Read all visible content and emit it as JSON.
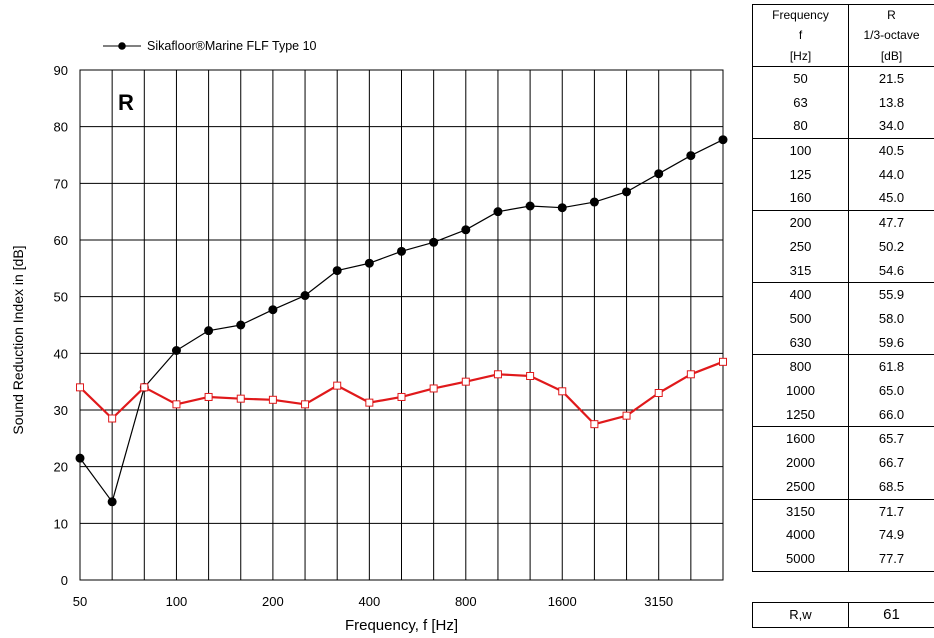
{
  "chart_data": {
    "type": "line",
    "legend": {
      "label": "Sikafloor®Marine FLF Type 10",
      "placement": "top-left"
    },
    "annotation": "R",
    "xlabel": "Frequency,  f [Hz]",
    "ylabel": "Sound Reduction Index in    [dB]",
    "x_tick_labels": [
      "50",
      "100",
      "200",
      "400",
      "800",
      "1600",
      "3150"
    ],
    "categories": [
      "50",
      "63",
      "80",
      "100",
      "125",
      "160",
      "200",
      "250",
      "315",
      "400",
      "500",
      "630",
      "800",
      "1000",
      "1250",
      "1600",
      "2000",
      "2500",
      "3150",
      "4000",
      "5000"
    ],
    "ylim": [
      0,
      90
    ],
    "yticks": [
      0,
      10,
      20,
      30,
      40,
      50,
      60,
      70,
      80,
      90
    ],
    "grid": true,
    "series": [
      {
        "name": "Sikafloor®Marine FLF Type 10",
        "color": "#000000",
        "marker": "filled-circle",
        "values": [
          21.5,
          13.8,
          34.0,
          40.5,
          44.0,
          45.0,
          47.7,
          50.2,
          54.6,
          55.9,
          58.0,
          59.6,
          61.8,
          65.0,
          66.0,
          65.7,
          66.7,
          68.5,
          71.7,
          74.9,
          77.7
        ]
      },
      {
        "color": "#e0191b",
        "marker": "open-square",
        "values": [
          34.0,
          28.5,
          34.0,
          31.0,
          32.3,
          32.0,
          31.8,
          31.0,
          34.3,
          31.3,
          32.3,
          33.8,
          35.0,
          36.3,
          36.0,
          33.3,
          27.5,
          29.0,
          33.0,
          36.3,
          38.5
        ]
      }
    ]
  },
  "table": {
    "header_col1": [
      "Frequency",
      "f",
      "[Hz]"
    ],
    "header_col2": [
      "R",
      "1/3-octave",
      "[dB]"
    ],
    "rows": [
      {
        "f": "50",
        "r": "21.5"
      },
      {
        "f": "63",
        "r": "13.8"
      },
      {
        "f": "80",
        "r": "34.0"
      },
      {
        "f": "100",
        "r": "40.5"
      },
      {
        "f": "125",
        "r": "44.0"
      },
      {
        "f": "160",
        "r": "45.0"
      },
      {
        "f": "200",
        "r": "47.7"
      },
      {
        "f": "250",
        "r": "50.2"
      },
      {
        "f": "315",
        "r": "54.6"
      },
      {
        "f": "400",
        "r": "55.9"
      },
      {
        "f": "500",
        "r": "58.0"
      },
      {
        "f": "630",
        "r": "59.6"
      },
      {
        "f": "800",
        "r": "61.8"
      },
      {
        "f": "1000",
        "r": "65.0"
      },
      {
        "f": "1250",
        "r": "66.0"
      },
      {
        "f": "1600",
        "r": "65.7"
      },
      {
        "f": "2000",
        "r": "66.7"
      },
      {
        "f": "2500",
        "r": "68.5"
      },
      {
        "f": "3150",
        "r": "71.7"
      },
      {
        "f": "4000",
        "r": "74.9"
      },
      {
        "f": "5000",
        "r": "77.7"
      }
    ]
  },
  "rating": {
    "label": "R,w",
    "value": "61"
  }
}
